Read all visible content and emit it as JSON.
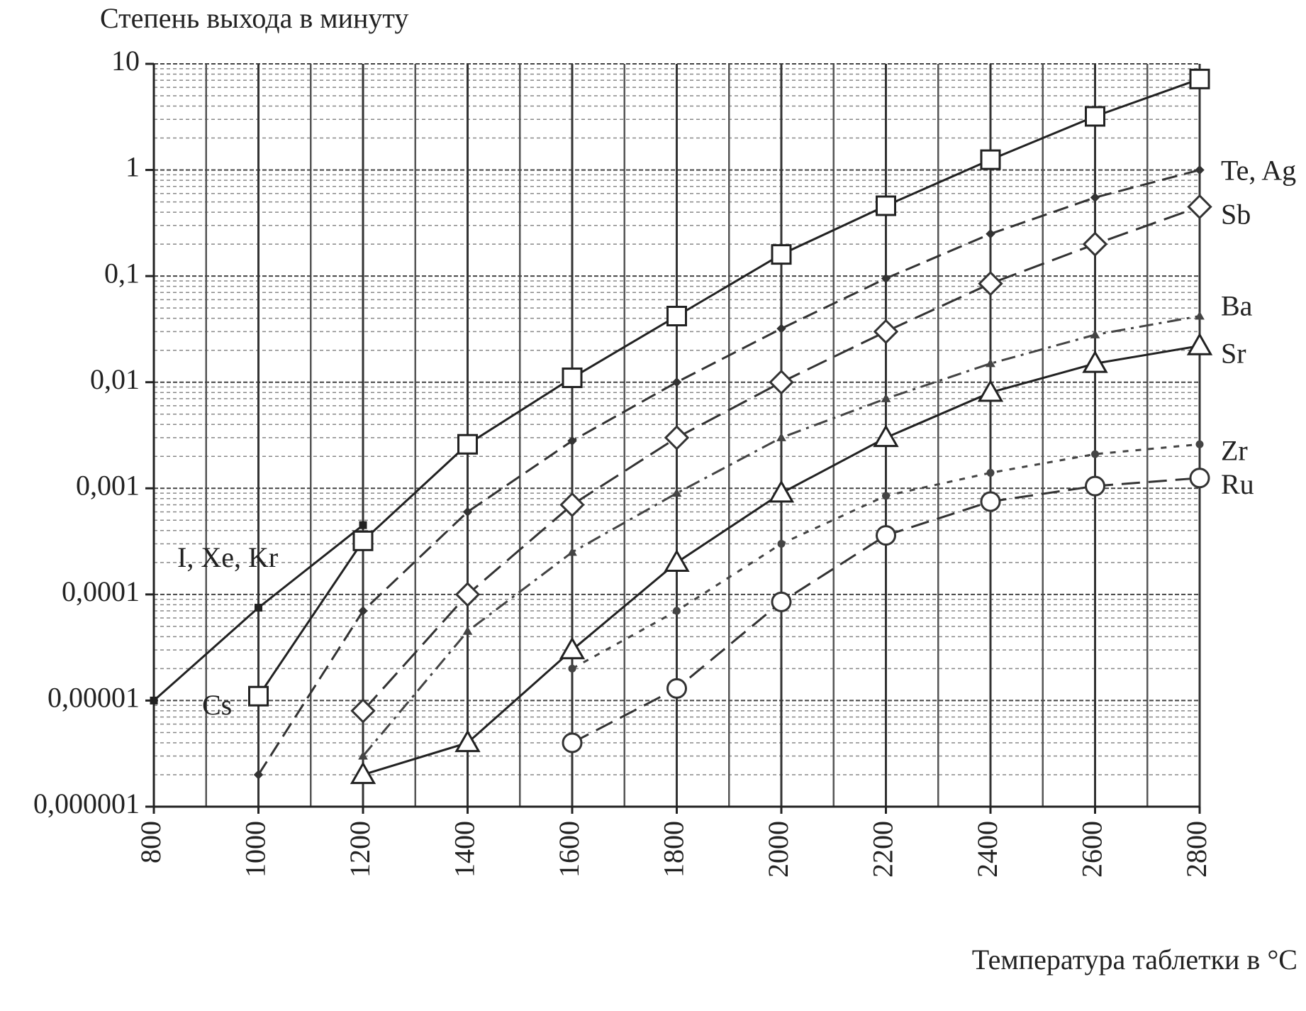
{
  "chart_data": {
    "type": "line",
    "title": "Степень выхода в минуту",
    "x_label": "Температура таблетки в °С",
    "xlim": [
      800,
      2800
    ],
    "xticks": [
      800,
      1000,
      1200,
      1400,
      1600,
      1800,
      2000,
      2200,
      2400,
      2600,
      2800
    ],
    "ylim": [
      1e-06,
      10
    ],
    "yscale": "log",
    "yticks": [
      {
        "value": 1e-06,
        "label": "0,000001"
      },
      {
        "value": 1e-05,
        "label": "0,00001"
      },
      {
        "value": 0.0001,
        "label": "0,0001"
      },
      {
        "value": 0.001,
        "label": "0,001"
      },
      {
        "value": 0.01,
        "label": "0,01"
      },
      {
        "value": 0.1,
        "label": "0,1"
      },
      1,
      10
    ],
    "grid": true,
    "minor_grid": true,
    "x": [
      800,
      1000,
      1200,
      1400,
      1600,
      1800,
      2000,
      2200,
      2400,
      2600,
      2800
    ],
    "series": [
      {
        "name": "I, Xe, Kr",
        "color": "#222",
        "marker": "square-small",
        "dash": "none",
        "values": [
          1e-05,
          7.5e-05,
          0.00045,
          null,
          null,
          null,
          null,
          null,
          null,
          null,
          null
        ]
      },
      {
        "name": "Cs",
        "color": "#222",
        "marker": "square-open",
        "dash": "none",
        "values": [
          null,
          1.1e-05,
          0.00032,
          0.0026,
          0.011,
          0.042,
          0.16,
          0.46,
          1.25,
          3.2,
          7.2
        ]
      },
      {
        "name": "Te, Ag",
        "color": "#333",
        "marker": "diamond-small",
        "dash": "22 10",
        "values": [
          null,
          2e-06,
          7e-05,
          0.0006,
          0.0028,
          0.01,
          0.032,
          0.095,
          0.25,
          0.55,
          1.0
        ]
      },
      {
        "name": "Sb",
        "color": "#333",
        "marker": "diamond-open",
        "dash": "30 12",
        "values": [
          null,
          null,
          8e-06,
          0.0001,
          0.0007,
          0.003,
          0.01,
          0.03,
          0.085,
          0.2,
          0.45
        ]
      },
      {
        "name": "Ba",
        "color": "#444",
        "marker": "triangle-small",
        "dash": "20 8 4 8",
        "values": [
          null,
          null,
          3e-06,
          4.5e-05,
          0.00025,
          0.0009,
          0.003,
          0.007,
          0.015,
          0.028,
          0.042
        ]
      },
      {
        "name": "Sr",
        "color": "#222",
        "marker": "triangle-open",
        "dash": "none",
        "values": [
          null,
          null,
          2e-06,
          4e-06,
          3e-05,
          0.0002,
          0.0009,
          0.003,
          0.008,
          0.015,
          0.022
        ]
      },
      {
        "name": "Zr",
        "color": "#444",
        "marker": "circle-small",
        "dash": "8 10",
        "values": [
          null,
          null,
          null,
          null,
          2e-05,
          7e-05,
          0.0003,
          0.00085,
          0.0014,
          0.0021,
          0.0026
        ]
      },
      {
        "name": "Ru",
        "color": "#333",
        "marker": "circle-open",
        "dash": "26 12",
        "values": [
          null,
          null,
          null,
          null,
          4e-06,
          1.3e-05,
          8.5e-05,
          0.00036,
          0.00075,
          0.00105,
          0.00125
        ]
      }
    ]
  }
}
